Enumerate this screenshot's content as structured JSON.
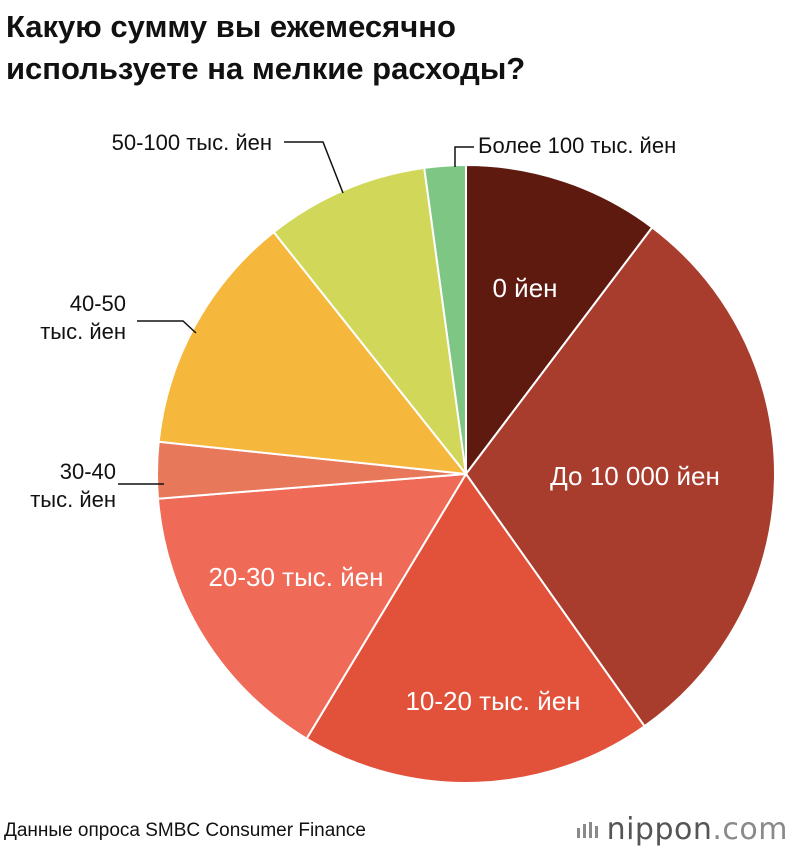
{
  "title": {
    "line1": "Какую сумму вы ежемесячно",
    "line2": "используете на мелкие расходы?"
  },
  "chart_data": {
    "type": "pie",
    "start_angle_deg": 0,
    "direction": "clockwise",
    "slices": [
      {
        "label": "0 йен",
        "value": 10.5,
        "color": "#5f1a10",
        "label_inside": true,
        "label_color": "#ffffff"
      },
      {
        "label": "До 10 000 йен",
        "value": 30.5,
        "color": "#a83d2d",
        "label_inside": true,
        "label_color": "#ffffff"
      },
      {
        "label": "10-20 тыс. йен",
        "value": 18.8,
        "color": "#e2513a",
        "label_inside": true,
        "label_color": "#ffffff"
      },
      {
        "label": "20-30 тыс. йен",
        "value": 15.4,
        "color": "#ef6a57",
        "label_inside": true,
        "label_color": "#ffffff"
      },
      {
        "label": "30-40 тыс. йен",
        "value": 3.0,
        "color": "#e8785a",
        "label_inside": false,
        "label_color": "#111111"
      },
      {
        "label": "40-50 тыс. йен",
        "value": 12.9,
        "color": "#f5b73c",
        "label_inside": false,
        "label_color": "#111111"
      },
      {
        "label": "50-100 тыс. йен",
        "value": 8.7,
        "color": "#d1d859",
        "label_inside": false,
        "label_color": "#111111"
      },
      {
        "label": "Более 100 тыс. йен",
        "value": 2.2,
        "color": "#7ec684",
        "label_inside": false,
        "label_color": "#111111"
      }
    ]
  },
  "source": "Данные опроса SMBC Consumer Finance",
  "brand": {
    "name": "nippon",
    "suffix": ".com"
  }
}
